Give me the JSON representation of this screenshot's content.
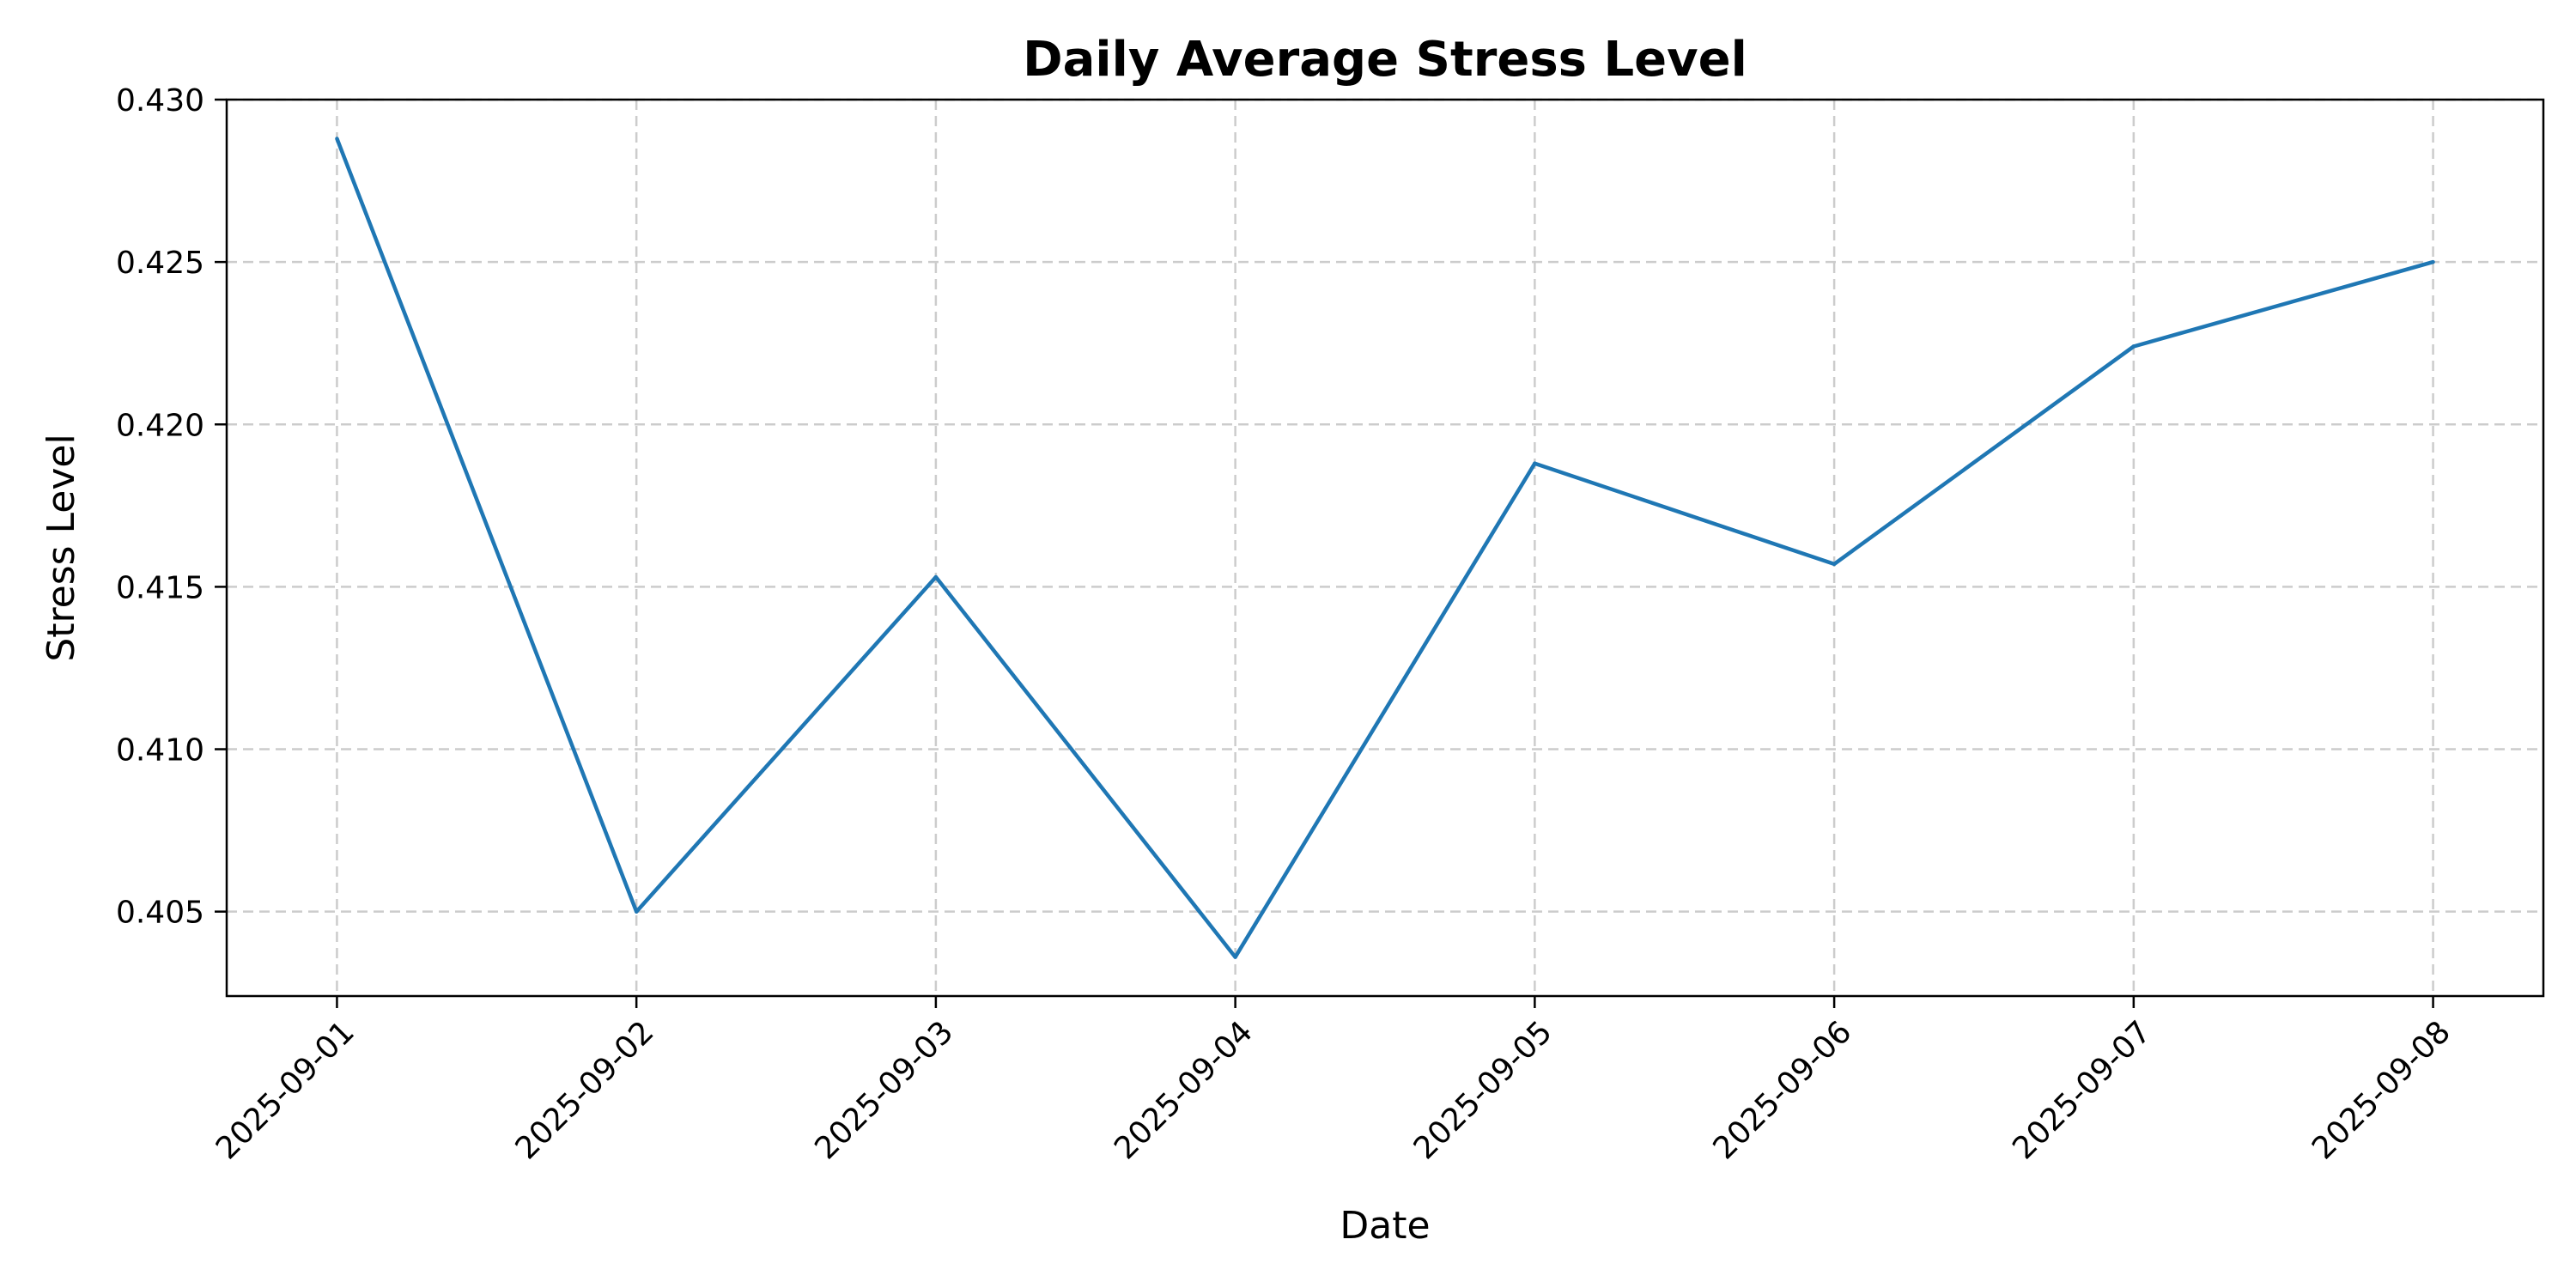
{
  "chart_data": {
    "type": "line",
    "title": "Daily Average Stress Level",
    "xlabel": "Date",
    "ylabel": "Stress Level",
    "categories": [
      "2025-09-01",
      "2025-09-02",
      "2025-09-03",
      "2025-09-04",
      "2025-09-05",
      "2025-09-06",
      "2025-09-07",
      "2025-09-08"
    ],
    "series": [
      {
        "values": [
          0.4288,
          0.405,
          0.4153,
          0.4036,
          0.4188,
          0.4157,
          0.4224,
          0.425
        ],
        "color": "#1f77b4"
      }
    ],
    "yticks": [
      "0.405",
      "0.410",
      "0.415",
      "0.420",
      "0.425",
      "0.430"
    ],
    "ylim": [
      0.4024,
      0.43
    ],
    "grid": true,
    "legend": "none"
  }
}
